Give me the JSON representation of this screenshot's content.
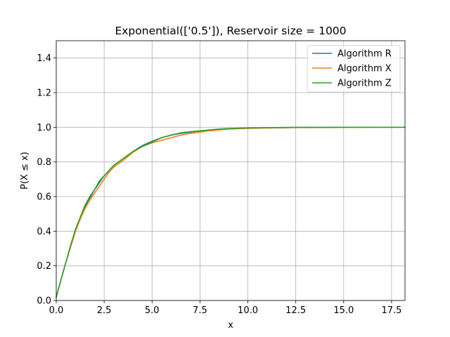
{
  "chart_data": {
    "type": "line",
    "title": "Exponential(['0.5']), Reservoir size = 1000",
    "xlabel": "x",
    "ylabel": "P(X ≤ x)",
    "xlim": [
      0,
      18.2
    ],
    "ylim": [
      0,
      1.5
    ],
    "xticks": [
      0,
      2.5,
      5,
      7.5,
      10,
      12.5,
      15,
      17.5
    ],
    "xtick_labels": [
      "0.0",
      "2.5",
      "5.0",
      "7.5",
      "10.0",
      "12.5",
      "15.0",
      "17.5"
    ],
    "yticks": [
      0,
      0.2,
      0.4,
      0.6,
      0.8,
      1.0,
      1.2,
      1.4
    ],
    "ytick_labels": [
      "0.0",
      "0.2",
      "0.4",
      "0.6",
      "0.8",
      "1.0",
      "1.2",
      "1.4"
    ],
    "grid": true,
    "legend_position": "top-right",
    "series": [
      {
        "name": "Algorithm R",
        "color": "#1f77b4",
        "x": [
          0,
          0.25,
          0.5,
          0.75,
          1.0,
          1.25,
          1.5,
          1.75,
          2.0,
          2.25,
          2.5,
          2.75,
          3.0,
          3.5,
          4.0,
          4.5,
          5.0,
          5.5,
          6.0,
          6.5,
          7.0,
          7.5,
          8.0,
          8.5,
          9.0,
          10.0,
          11.0,
          12.0,
          13.0,
          14.75
        ],
        "y": [
          0.02,
          0.12,
          0.22,
          0.31,
          0.4,
          0.47,
          0.54,
          0.59,
          0.64,
          0.68,
          0.72,
          0.75,
          0.78,
          0.82,
          0.86,
          0.895,
          0.92,
          0.94,
          0.955,
          0.965,
          0.972,
          0.978,
          0.983,
          0.988,
          0.991,
          0.995,
          0.997,
          0.998,
          0.999,
          1.0
        ]
      },
      {
        "name": "Algorithm X",
        "color": "#ff7f0e",
        "x": [
          0,
          0.25,
          0.5,
          0.75,
          1.0,
          1.25,
          1.5,
          1.75,
          2.0,
          2.25,
          2.5,
          2.75,
          3.0,
          3.5,
          4.0,
          4.5,
          5.0,
          5.5,
          6.0,
          6.5,
          7.0,
          7.5,
          8.0,
          8.5,
          9.0,
          10.0,
          11.0,
          12.0,
          13.0,
          18.2
        ],
        "y": [
          0.02,
          0.12,
          0.22,
          0.31,
          0.4,
          0.47,
          0.53,
          0.58,
          0.62,
          0.66,
          0.7,
          0.74,
          0.77,
          0.81,
          0.855,
          0.89,
          0.91,
          0.925,
          0.94,
          0.955,
          0.965,
          0.972,
          0.98,
          0.985,
          0.99,
          0.994,
          0.996,
          0.998,
          0.999,
          1.0
        ]
      },
      {
        "name": "Algorithm Z",
        "color": "#2ca02c",
        "x": [
          0,
          0.25,
          0.5,
          0.75,
          1.0,
          1.25,
          1.5,
          1.75,
          2.0,
          2.25,
          2.5,
          2.75,
          3.0,
          3.5,
          4.0,
          4.5,
          5.0,
          5.5,
          6.0,
          6.5,
          7.0,
          7.5,
          8.0,
          8.5,
          9.0,
          10.0,
          11.0,
          12.0,
          13.0,
          18.2
        ],
        "y": [
          0.02,
          0.12,
          0.22,
          0.32,
          0.41,
          0.48,
          0.55,
          0.6,
          0.64,
          0.69,
          0.72,
          0.75,
          0.78,
          0.82,
          0.86,
          0.89,
          0.915,
          0.94,
          0.955,
          0.968,
          0.975,
          0.98,
          0.985,
          0.99,
          0.993,
          0.996,
          0.998,
          0.999,
          1.0,
          1.0
        ]
      }
    ]
  }
}
